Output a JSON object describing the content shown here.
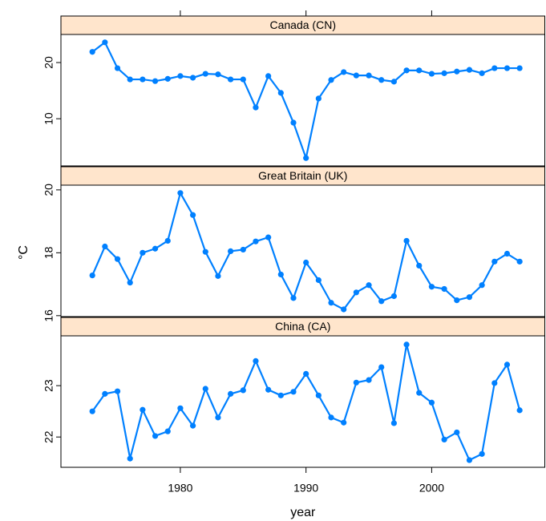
{
  "chart_data": [
    {
      "type": "line",
      "title": "Canada (CN)",
      "color": "#0080ff",
      "xlim": [
        1970.5,
        2009
      ],
      "xticks": [
        1980,
        1990,
        2000
      ],
      "ylim": [
        1.6,
        25
      ],
      "yticks": [
        10,
        20
      ],
      "x": [
        1973,
        1974,
        1975,
        1976,
        1977,
        1978,
        1979,
        1980,
        1981,
        1982,
        1983,
        1984,
        1985,
        1986,
        1987,
        1988,
        1989,
        1990,
        1991,
        1992,
        1993,
        1994,
        1995,
        1996,
        1997,
        1998,
        1999,
        2000,
        2001,
        2002,
        2003,
        2004,
        2005,
        2006,
        2007
      ],
      "values": [
        21.9,
        23.6,
        19.0,
        17.0,
        17.0,
        16.7,
        17.1,
        17.6,
        17.3,
        18.0,
        17.9,
        17.0,
        17.0,
        12.0,
        17.6,
        14.6,
        9.3,
        3.0,
        13.6,
        16.9,
        18.3,
        17.7,
        17.7,
        16.9,
        16.6,
        18.6,
        18.6,
        18.0,
        18.1,
        18.4,
        18.7,
        18.1,
        19.0,
        19.0,
        19.0
      ]
    },
    {
      "type": "line",
      "title": "Great Britain (UK)",
      "color": "#0080ff",
      "xlim": [
        1970.5,
        2009
      ],
      "ylim": [
        15.97,
        20.15
      ],
      "yticks": [
        16,
        18,
        20
      ],
      "ylabel": "°C",
      "x": [
        1973,
        1974,
        1975,
        1976,
        1977,
        1978,
        1979,
        1980,
        1981,
        1982,
        1983,
        1984,
        1985,
        1986,
        1987,
        1988,
        1989,
        1990,
        1991,
        1992,
        1993,
        1994,
        1995,
        1996,
        1997,
        1998,
        1999,
        2000,
        2001,
        2002,
        2003,
        2004,
        2005,
        2006,
        2007
      ],
      "values": [
        17.28,
        18.2,
        17.8,
        17.05,
        18.0,
        18.13,
        18.38,
        19.9,
        19.2,
        18.03,
        17.26,
        18.05,
        18.1,
        18.36,
        18.49,
        17.31,
        16.56,
        17.69,
        17.13,
        16.41,
        16.2,
        16.74,
        16.97,
        16.46,
        16.62,
        18.38,
        17.59,
        16.92,
        16.85,
        16.49,
        16.59,
        16.97,
        17.72,
        17.97,
        17.72
      ]
    },
    {
      "type": "line",
      "title": "China (CA)",
      "color": "#0080ff",
      "xlim": [
        1970.5,
        2009
      ],
      "xticks": [
        1980,
        1990,
        2000
      ],
      "xlabel": "year",
      "ylim": [
        21.41,
        23.97
      ],
      "yticks": [
        22,
        23
      ],
      "x": [
        1973,
        1974,
        1975,
        1976,
        1977,
        1978,
        1979,
        1980,
        1981,
        1982,
        1983,
        1984,
        1985,
        1986,
        1987,
        1988,
        1989,
        1990,
        1991,
        1992,
        1993,
        1994,
        1995,
        1996,
        1997,
        1998,
        1999,
        2000,
        2001,
        2002,
        2003,
        2004,
        2005,
        2006,
        2007
      ],
      "values": [
        22.5,
        22.84,
        22.89,
        21.58,
        22.53,
        22.02,
        22.11,
        22.56,
        22.22,
        22.94,
        22.38,
        22.84,
        22.91,
        23.48,
        22.92,
        22.81,
        22.88,
        23.23,
        22.81,
        22.38,
        22.28,
        23.06,
        23.11,
        23.36,
        22.27,
        23.8,
        22.86,
        22.67,
        21.95,
        22.09,
        21.55,
        21.67,
        23.05,
        23.41,
        22.52
      ]
    }
  ]
}
